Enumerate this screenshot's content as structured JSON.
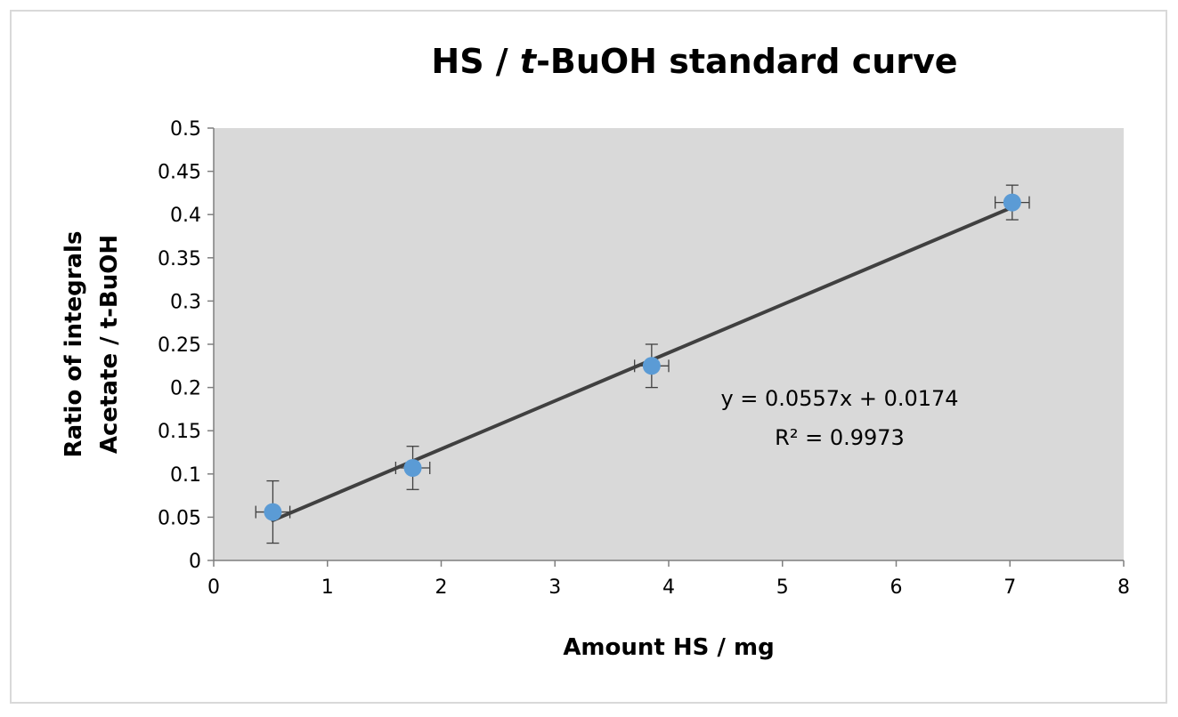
{
  "chart_data": {
    "type": "scatter",
    "title_parts": [
      "HS / ",
      "t",
      "-BuOH standard curve"
    ],
    "xlabel": "Amount HS / mg",
    "ylabel_lines": [
      "Ratio of integrals",
      "Acetate / t-BuOH"
    ],
    "xlim": [
      0,
      8
    ],
    "ylim": [
      0,
      0.5
    ],
    "x_ticks": [
      0,
      1,
      2,
      3,
      4,
      5,
      6,
      7,
      8
    ],
    "x_tick_labels": [
      "0",
      "1",
      "2",
      "3",
      "4",
      "5",
      "6",
      "7",
      "8"
    ],
    "y_ticks": [
      0,
      0.05,
      0.1,
      0.15,
      0.2,
      0.25,
      0.3,
      0.35,
      0.4,
      0.45,
      0.5
    ],
    "y_tick_labels": [
      "0",
      "0.05",
      "0.1",
      "0.15",
      "0.2",
      "0.25",
      "0.3",
      "0.35",
      "0.4",
      "0.45",
      "0.5"
    ],
    "grid": false,
    "legend": "none",
    "series": [
      {
        "x": [
          0.52,
          1.75,
          3.85,
          7.02
        ],
        "y": [
          0.056,
          0.107,
          0.225,
          0.414
        ],
        "x_err": [
          0.15,
          0.15,
          0.15,
          0.15
        ],
        "y_err": [
          0.036,
          0.025,
          0.025,
          0.02
        ],
        "color": "#5B9BD5"
      }
    ],
    "trendline": {
      "slope": 0.0557,
      "intercept": 0.0174,
      "x_range": [
        0.52,
        7.02
      ],
      "color": "#404040"
    },
    "annotations": {
      "equation": "y = 0.0557x + 0.0174",
      "r_squared": "R² = 0.9973"
    },
    "plot_background": "#D9D9D9"
  }
}
